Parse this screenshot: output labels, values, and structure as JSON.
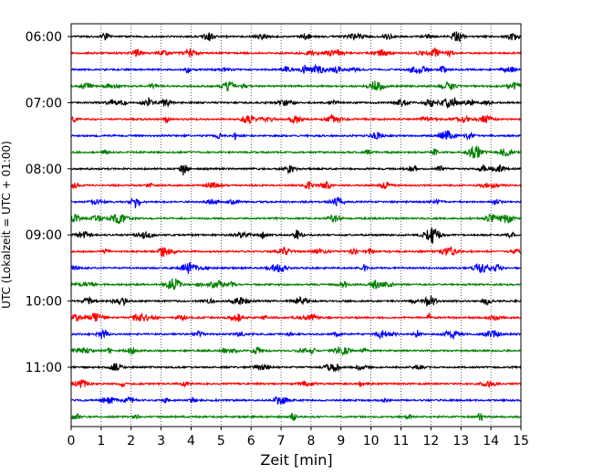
{
  "chart_data": {
    "type": "line",
    "subtype": "helicorder",
    "xlabel": "Zeit  [min]",
    "ylabel": "UTC (Lokalzeit = UTC + 01:00)",
    "xlim": [
      0,
      15
    ],
    "x_ticks": [
      "0",
      "1",
      "2",
      "3",
      "4",
      "5",
      "6",
      "7",
      "8",
      "9",
      "10",
      "11",
      "12",
      "13",
      "14",
      "15"
    ],
    "y_ticks": [
      "06:00",
      "07:00",
      "08:00",
      "09:00",
      "10:00",
      "11:00"
    ],
    "grid": "vertical dotted",
    "trace_colors": [
      "#000000",
      "#ff0000",
      "#0000ff",
      "#008000"
    ],
    "traces": [
      {
        "start": "06:00",
        "color": "#000000"
      },
      {
        "start": "06:15",
        "color": "#ff0000"
      },
      {
        "start": "06:30",
        "color": "#0000ff"
      },
      {
        "start": "06:45",
        "color": "#008000"
      },
      {
        "start": "07:00",
        "color": "#000000"
      },
      {
        "start": "07:15",
        "color": "#ff0000"
      },
      {
        "start": "07:30",
        "color": "#0000ff"
      },
      {
        "start": "07:45",
        "color": "#008000"
      },
      {
        "start": "08:00",
        "color": "#000000"
      },
      {
        "start": "08:15",
        "color": "#ff0000"
      },
      {
        "start": "08:30",
        "color": "#0000ff"
      },
      {
        "start": "08:45",
        "color": "#008000"
      },
      {
        "start": "09:00",
        "color": "#000000"
      },
      {
        "start": "09:15",
        "color": "#ff0000"
      },
      {
        "start": "09:30",
        "color": "#0000ff"
      },
      {
        "start": "09:45",
        "color": "#008000"
      },
      {
        "start": "10:00",
        "color": "#000000"
      },
      {
        "start": "10:15",
        "color": "#ff0000"
      },
      {
        "start": "10:30",
        "color": "#0000ff"
      },
      {
        "start": "10:45",
        "color": "#008000"
      },
      {
        "start": "11:00",
        "color": "#000000"
      },
      {
        "start": "11:15",
        "color": "#ff0000"
      },
      {
        "start": "11:30",
        "color": "#0000ff"
      },
      {
        "start": "11:45",
        "color": "#008000"
      }
    ]
  }
}
